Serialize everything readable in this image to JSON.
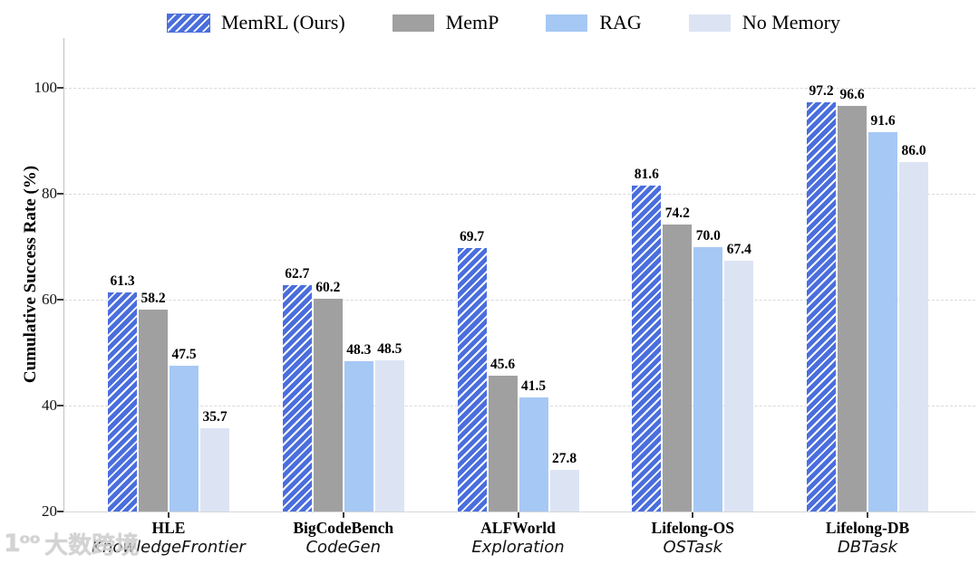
{
  "watermark": {
    "logo_text": "1ᵒᵒ",
    "brand_text": "大数跨境"
  },
  "chart_data": {
    "type": "bar",
    "title": "",
    "xlabel": "",
    "ylabel": "Cumulative Success Rate (%)",
    "ylim": [
      20,
      109.4
    ],
    "yticks": [
      20,
      40,
      60,
      80,
      100
    ],
    "gridlines": [
      40,
      60,
      80,
      100
    ],
    "grid": "horizontal-dashed",
    "legend_position": "top-center",
    "categories": [
      "HLE",
      "BigCodeBench",
      "ALFWorld",
      "Lifelong-OS",
      "Lifelong-DB"
    ],
    "category_subtitles": [
      "KnowledgeFrontier",
      "CodeGen",
      "Exploration",
      "OSTask",
      "DBTask"
    ],
    "value_label_decimals": 1,
    "series": [
      {
        "name": "MemRL (Ours)",
        "color": "#4a6edc",
        "hatch": "///",
        "hatch_color": "#ffffff",
        "values": [
          61.3,
          62.7,
          69.7,
          81.6,
          97.2
        ]
      },
      {
        "name": "MemP",
        "color": "#a0a0a0",
        "hatch": null,
        "values": [
          58.2,
          60.2,
          45.6,
          74.2,
          96.6
        ]
      },
      {
        "name": "RAG",
        "color": "#a6c8f4",
        "hatch": null,
        "values": [
          47.5,
          48.3,
          41.5,
          70.0,
          91.6
        ]
      },
      {
        "name": "No Memory",
        "color": "#dce4f4",
        "hatch": null,
        "values": [
          35.7,
          48.5,
          27.8,
          67.4,
          86.0
        ]
      }
    ]
  }
}
